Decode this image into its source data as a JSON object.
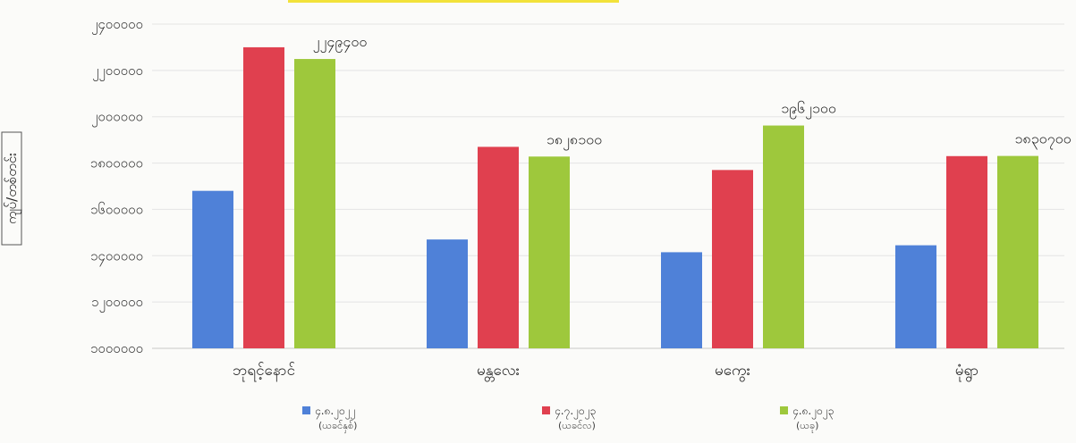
{
  "chart_data": {
    "type": "bar",
    "ylabel": "ကျပ်/တစ်တင်း",
    "ylim": [
      1000000,
      1250000
    ],
    "yticks": [
      "၁၀၀၀၀၀၀",
      "၁၂၀၀၀၀၀",
      "၁၄၀၀၀၀၀",
      "၁၆၀၀၀၀၀",
      "၁၈၀၀၀၀၀",
      "၂၀၀၀၀၀၀",
      "၂၂၀၀၀၀၀",
      "၂၄၀၀၀၀၀"
    ],
    "ytick_values": [
      1000000,
      1200000,
      1400000,
      1600000,
      1800000,
      2000000,
      2200000,
      2400000
    ],
    "categories": [
      "ဘုရင့်နောင်",
      "မန္တလေး",
      "မကွေး",
      "မုံရွာ"
    ],
    "series": [
      {
        "name": "၄.၈.၂၀၂၂",
        "sub": "(ယခင်နှစ်)",
        "color": "#4f81d8",
        "values": [
          1680000,
          1470000,
          1415000,
          1445000
        ]
      },
      {
        "name": "၄.၇.၂၀၂၃",
        "sub": "(ယခင်လ)",
        "color": "#e0404f",
        "values": [
          2300000,
          1870000,
          1770000,
          1830000
        ]
      },
      {
        "name": "၄.၈.၂၀၂၃",
        "sub": "(ယခု)",
        "color": "#9ec83c",
        "values": [
          2249400,
          1828100,
          1962100,
          1830700
        ]
      }
    ],
    "data_labels": [
      {
        "series": 2,
        "category": 0,
        "text": "၂၂၄၉၄၀၀"
      },
      {
        "series": 2,
        "category": 1,
        "text": "၁၈၂၈၁၀၀"
      },
      {
        "series": 2,
        "category": 2,
        "text": "၁၉၆၂၁၀၀"
      },
      {
        "series": 2,
        "category": 3,
        "text": "၁၈၃၀၇၀၀"
      }
    ],
    "grid": true,
    "legend": "bottom"
  }
}
